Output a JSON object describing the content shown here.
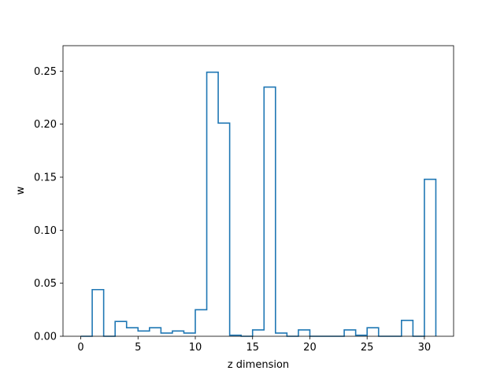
{
  "chart_data": {
    "type": "bar",
    "style": "step-histogram",
    "title": "",
    "xlabel": "z dimension",
    "ylabel": "w",
    "xlim": [
      -1.55,
      32.55
    ],
    "ylim": [
      0,
      0.274
    ],
    "xticks": [
      0,
      5,
      10,
      15,
      20,
      25,
      30
    ],
    "yticks": [
      0.0,
      0.05,
      0.1,
      0.15,
      0.2,
      0.25
    ],
    "ytick_labels": [
      "0.00",
      "0.05",
      "0.10",
      "0.15",
      "0.20",
      "0.25"
    ],
    "bin_start": 0,
    "bin_width": 1,
    "values": [
      0.0,
      0.044,
      0.0,
      0.014,
      0.008,
      0.005,
      0.008,
      0.003,
      0.005,
      0.003,
      0.025,
      0.249,
      0.201,
      0.001,
      0.0,
      0.006,
      0.235,
      0.003,
      0.0,
      0.006,
      0.0,
      0.0,
      0.0,
      0.006,
      0.001,
      0.008,
      0.0,
      0.0,
      0.015,
      0.0,
      0.148
    ],
    "color": "#1f77b4",
    "grid": false
  }
}
